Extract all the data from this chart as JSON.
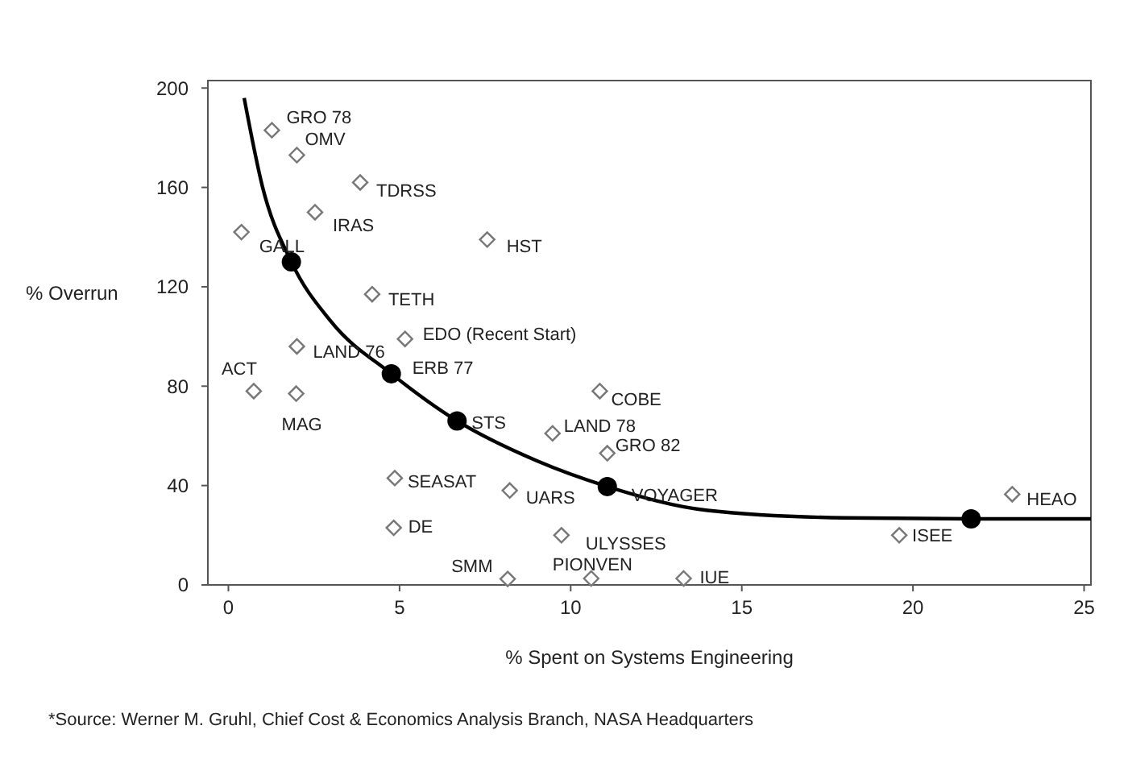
{
  "chart_data": {
    "type": "scatter",
    "xlabel": "% Spent on Systems Engineering",
    "ylabel": "% Overrun",
    "xlim": [
      -0.6,
      25.2
    ],
    "ylim": [
      0,
      203
    ],
    "xticks": [
      0,
      5,
      10,
      15,
      20,
      25
    ],
    "yticks": [
      0,
      40,
      80,
      120,
      160,
      200
    ],
    "grid": false,
    "series": [
      {
        "type": "scatter",
        "marker": "diamond",
        "color": "#777777",
        "x": [
          1.27,
          2.0,
          3.85,
          2.53,
          0.38,
          7.56,
          4.2,
          2.0,
          5.16,
          0.74,
          1.98,
          4.86,
          4.83,
          8.22,
          8.16,
          10.6,
          9.73,
          9.47,
          10.85,
          11.07,
          11.1,
          22.9,
          19.6,
          13.3
        ],
        "values": [
          183,
          173,
          162,
          150,
          142,
          139,
          117,
          96,
          99,
          78,
          77,
          43,
          23,
          38,
          2.4,
          2.6,
          20,
          61,
          78,
          53,
          null,
          36.5,
          20,
          2.6
        ]
      },
      {
        "type": "scatter",
        "marker": "circle",
        "color": "#000000",
        "x": [
          1.84,
          4.76,
          6.68,
          11.07,
          21.7
        ],
        "values": [
          130,
          85,
          66,
          39.6,
          26.6
        ]
      },
      {
        "type": "line",
        "marker": "none",
        "line_style": "solid",
        "color": "#000000",
        "x": [
          0.46,
          1.0,
          1.84,
          3,
          4.76,
          6.68,
          9,
          11.07,
          14,
          18,
          21.7,
          25.2
        ],
        "values": [
          196,
          160,
          130,
          106,
          85,
          66,
          50,
          39.6,
          30,
          27,
          26.6,
          26.6
        ]
      }
    ],
    "annotations": [
      {
        "text": "GRO 78",
        "x": 1.27,
        "y": 183
      },
      {
        "text": "OMV",
        "x": 2.0,
        "y": 173
      },
      {
        "text": "TDRSS",
        "x": 3.85,
        "y": 162
      },
      {
        "text": "IRAS",
        "x": 2.53,
        "y": 150
      },
      {
        "text": "GALL",
        "x": 1.84,
        "y": 130
      },
      {
        "text": "HST",
        "x": 7.56,
        "y": 139
      },
      {
        "text": "TETH",
        "x": 4.2,
        "y": 117
      },
      {
        "text": "LAND 76",
        "x": 2.0,
        "y": 96
      },
      {
        "text": "EDO (Recent Start)",
        "x": 5.16,
        "y": 99
      },
      {
        "text": "ACT",
        "x": 0.74,
        "y": 78
      },
      {
        "text": "MAG",
        "x": 1.98,
        "y": 77
      },
      {
        "text": "ERB 77",
        "x": 4.76,
        "y": 85
      },
      {
        "text": "STS",
        "x": 6.68,
        "y": 66
      },
      {
        "text": "SEASAT",
        "x": 4.86,
        "y": 43
      },
      {
        "text": "DE",
        "x": 4.83,
        "y": 23
      },
      {
        "text": "UARS",
        "x": 8.22,
        "y": 38
      },
      {
        "text": "SMM",
        "x": 8.16,
        "y": 2.4
      },
      {
        "text": "PIONVEN",
        "x": 10.6,
        "y": 2.6
      },
      {
        "text": "ULYSSES",
        "x": 9.73,
        "y": 20
      },
      {
        "text": "LAND 78",
        "x": 9.47,
        "y": 61
      },
      {
        "text": "COBE",
        "x": 10.85,
        "y": 78
      },
      {
        "text": "GRO 82",
        "x": 11.07,
        "y": 53
      },
      {
        "text": "VOYAGER",
        "x": 11.07,
        "y": 39.6
      },
      {
        "text": "HEAO",
        "x": 22.9,
        "y": 36.5
      },
      {
        "text": "ISEE",
        "x": 19.6,
        "y": 20
      },
      {
        "text": "IUE",
        "x": 13.3,
        "y": 2.6
      },
      "*Source: Werner M. Gruhl, Chief Cost & Economics Analysis Branch, NASA Headquarters"
    ]
  }
}
